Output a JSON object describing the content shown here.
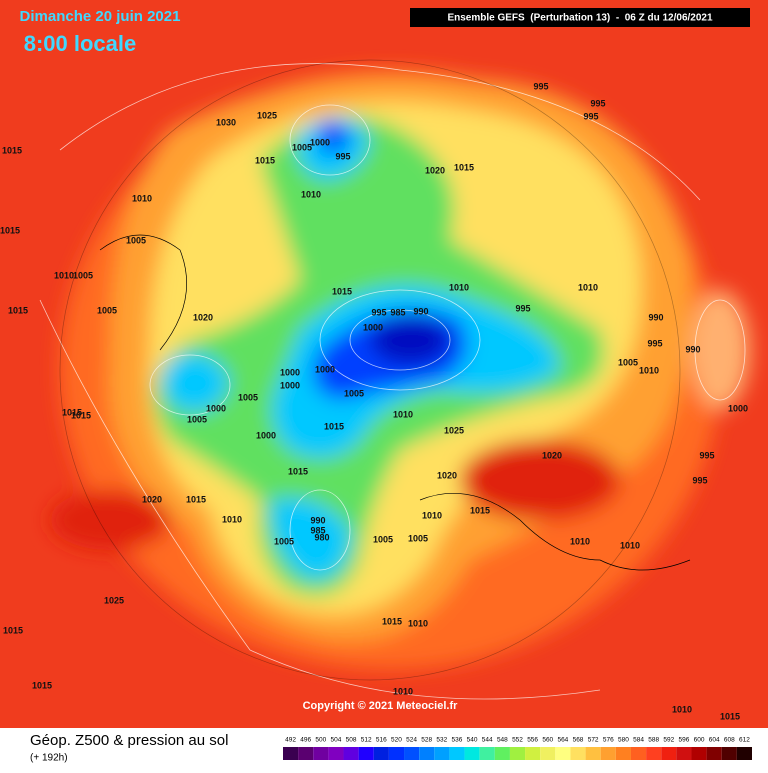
{
  "header": {
    "date": "Dimanche 20 juin 2021",
    "time": "8:00 locale",
    "model": "Ensemble GEFS  (Perturbation 13)  -  06 Z du 12/06/2021"
  },
  "footer": {
    "title": "Géop. Z500 & pression au sol",
    "subtitle": "(+ 192h)",
    "copyright": "Copyright © 2021 Meteociel.fr"
  },
  "colorbar": {
    "ticks": [
      492,
      496,
      500,
      504,
      508,
      512,
      516,
      520,
      524,
      528,
      532,
      536,
      540,
      544,
      548,
      552,
      556,
      560,
      564,
      568,
      572,
      576,
      580,
      584,
      588,
      592,
      596,
      600,
      604,
      608,
      612
    ],
    "colors": [
      "#3a0050",
      "#5a0070",
      "#7000a0",
      "#8000c0",
      "#6000e0",
      "#2000ff",
      "#0020e0",
      "#0030ff",
      "#0050ff",
      "#0080ff",
      "#00a0ff",
      "#00c8ff",
      "#00e8e0",
      "#40f0a0",
      "#60f060",
      "#a0f040",
      "#d0f040",
      "#f0f060",
      "#ffff80",
      "#ffe060",
      "#ffc040",
      "#ffa030",
      "#ff8020",
      "#ff6020",
      "#ff4020",
      "#f02010",
      "#d01010",
      "#b00000",
      "#800000",
      "#500000",
      "#200000"
    ]
  },
  "pressure_labels": [
    "995",
    "995",
    "995",
    "1025",
    "1030",
    "1005",
    "1000",
    "995",
    "1015",
    "1020",
    "1015",
    "1015",
    "1010",
    "1010",
    "1015",
    "1005",
    "1010",
    "1005",
    "1015",
    "1010",
    "1010",
    "1015",
    "1005",
    "1020",
    "995",
    "985",
    "990",
    "995",
    "1000",
    "990",
    "995",
    "990",
    "1005",
    "1010",
    "1000",
    "1000",
    "1000",
    "1005",
    "1005",
    "1000",
    "1015",
    "1015",
    "1005",
    "1010",
    "1000",
    "1015",
    "1025",
    "1000",
    "995",
    "1020",
    "1015",
    "1020",
    "995",
    "1020",
    "1015",
    "1015",
    "1010",
    "1010",
    "990",
    "985",
    "980",
    "1005",
    "1005",
    "1010",
    "1010",
    "1005",
    "1025",
    "1015",
    "1010",
    "1015",
    "1015",
    "1010",
    "1010",
    "1015"
  ]
}
